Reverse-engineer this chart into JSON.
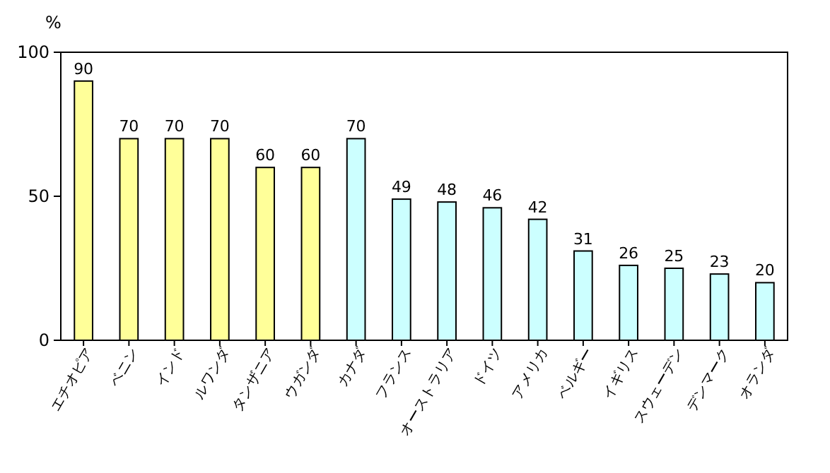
{
  "chart_data": {
    "type": "bar",
    "ylabel": "%",
    "categories": [
      "エチオピア",
      "ベニン",
      "インド",
      "ルワンダ",
      "タンザニア",
      "ウガンダ",
      "カナダ",
      "フランス",
      "オーストラリア",
      "ドイツ",
      "アメリカ",
      "ベルギー",
      "イギリス",
      "スウェーデン",
      "デンマーク",
      "オランダ"
    ],
    "values": [
      90,
      70,
      70,
      70,
      60,
      60,
      70,
      49,
      48,
      46,
      42,
      31,
      26,
      25,
      23,
      20
    ],
    "colors": [
      "#ffff99",
      "#ffff99",
      "#ffff99",
      "#ffff99",
      "#ffff99",
      "#ffff99",
      "#ccffff",
      "#ccffff",
      "#ccffff",
      "#ccffff",
      "#ccffff",
      "#ccffff",
      "#ccffff",
      "#ccffff",
      "#ccffff",
      "#ccffff"
    ],
    "ylim": [
      0,
      100
    ],
    "yticks": [
      0,
      50,
      100
    ],
    "data_labels": true
  }
}
